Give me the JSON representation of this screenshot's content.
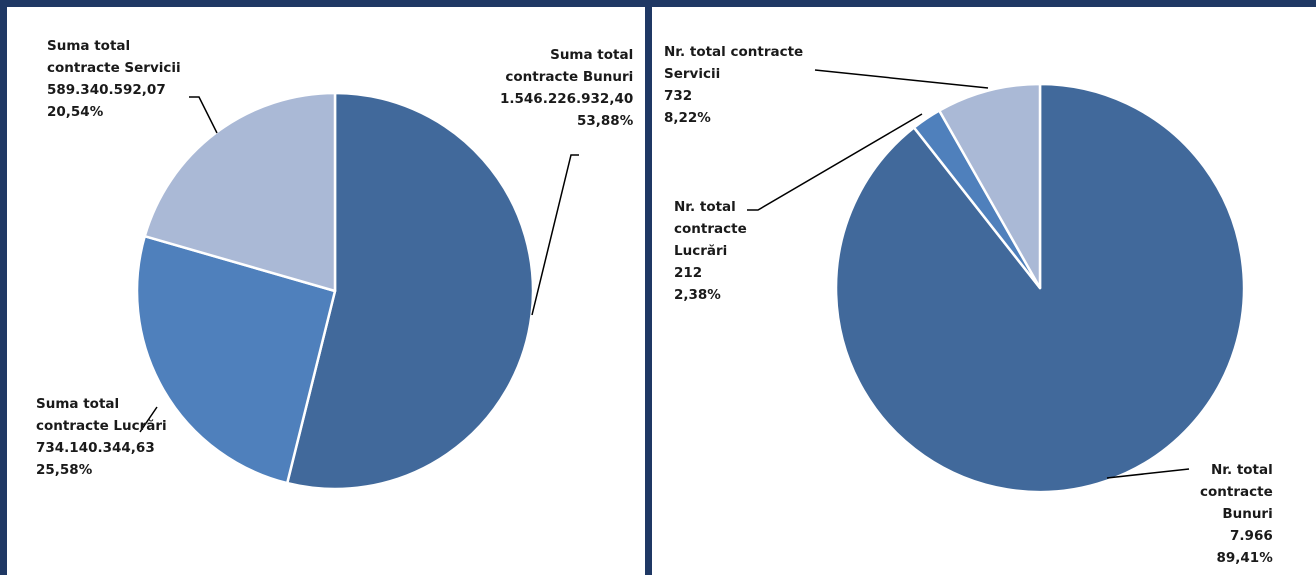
{
  "chart_data": [
    {
      "type": "pie",
      "slices": [
        {
          "label_lines": [
            "Suma total",
            "contracte Bunuri"
          ],
          "value": 1546226932.4,
          "value_text": "1.546.226.932,40",
          "percent": 53.88,
          "percent_text": "53,88%",
          "color": "#41699b"
        },
        {
          "label_lines": [
            "Suma total",
            "contracte Lucrări"
          ],
          "value": 734140344.63,
          "value_text": "734.140.344,63",
          "percent": 25.58,
          "percent_text": "25,58%",
          "color": "#4f80bc"
        },
        {
          "label_lines": [
            "Suma total",
            "contracte Servicii"
          ],
          "value": 589340592.07,
          "value_text": "589.340.592,07",
          "percent": 20.54,
          "percent_text": "20,54%",
          "color": "#aab9d6"
        }
      ]
    },
    {
      "type": "pie",
      "slices": [
        {
          "label_lines": [
            "Nr. total",
            "contracte",
            "Bunuri"
          ],
          "value": 7966,
          "value_text": "7.966",
          "percent": 89.41,
          "percent_text": "89,41%",
          "color": "#41699b"
        },
        {
          "label_lines": [
            "Nr. total",
            "contracte",
            "Lucrări"
          ],
          "value": 212,
          "value_text": "212",
          "percent": 2.38,
          "percent_text": "2,38%",
          "color": "#4f80bc"
        },
        {
          "label_lines": [
            "Nr. total contracte",
            "Servicii"
          ],
          "value": 732,
          "value_text": "732",
          "percent": 8.22,
          "percent_text": "8,22%",
          "color": "#aab9d6"
        }
      ]
    }
  ],
  "slice_border_color": "#ffffff",
  "leader_line_color": "#000000",
  "frame_color": "#1f3864"
}
